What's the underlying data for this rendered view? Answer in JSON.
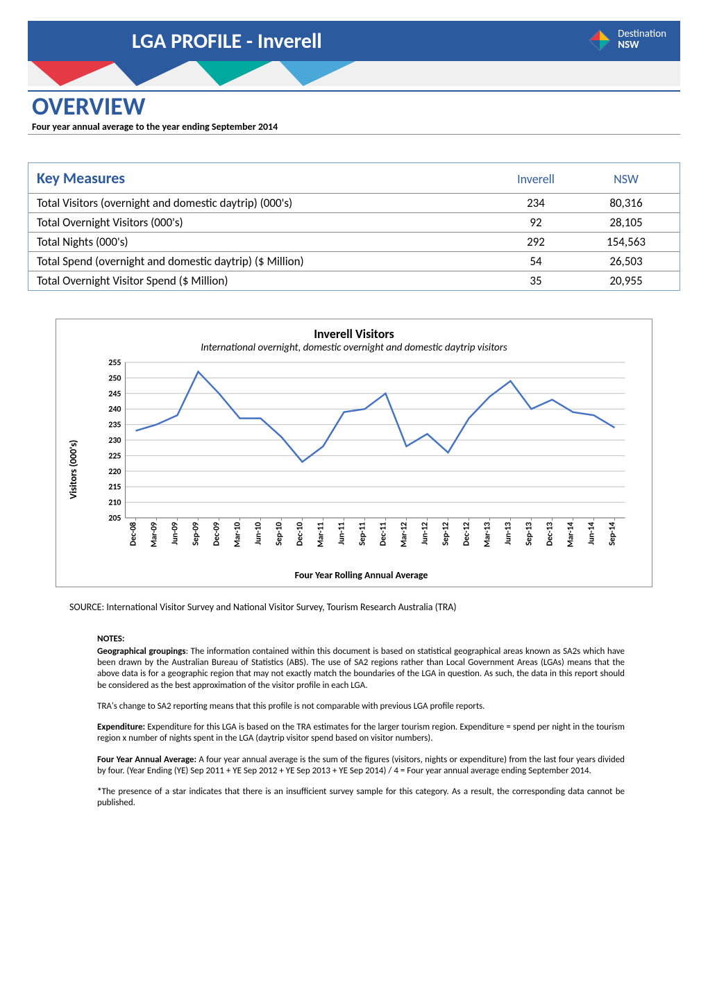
{
  "header": {
    "title": "LGA PROFILE - Inverell",
    "logo_text_line1": "Destination",
    "logo_text_line2": "NSW",
    "logo_colors": [
      "#e63946",
      "#00a99d",
      "#2c5a9e",
      "#fdb813"
    ]
  },
  "overview": {
    "title": "OVERVIEW",
    "subtitle": "Four year annual average to the year ending September 2014"
  },
  "key_measures": {
    "heading": "Key Measures",
    "col1": "Inverell",
    "col2": "NSW",
    "rows": [
      {
        "metric": "Total Visitors (overnight and domestic daytrip) (000's)",
        "v1": "234",
        "v2": "80,316"
      },
      {
        "metric": "Total Overnight Visitors (000's)",
        "v1": "92",
        "v2": "28,105"
      },
      {
        "metric": "Total Nights (000's)",
        "v1": "292",
        "v2": "154,563"
      },
      {
        "metric": "Total Spend (overnight and domestic daytrip) ($ Million)",
        "v1": "54",
        "v2": "26,503"
      },
      {
        "metric": "Total Overnight Visitor Spend ($ Million)",
        "v1": "35",
        "v2": "20,955"
      }
    ]
  },
  "chart": {
    "type": "line",
    "title": "Inverell Visitors",
    "subtitle": "International overnight, domestic overnight and domestic daytrip visitors",
    "ylabel": "Visitors (000's)",
    "xlabel": "Four Year Rolling Annual Average",
    "ylim": [
      205,
      255
    ],
    "ytick_step": 5,
    "yticks": [
      205,
      210,
      215,
      220,
      225,
      230,
      235,
      240,
      245,
      250,
      255
    ],
    "categories": [
      "Dec-08",
      "Mar-09",
      "Jun-09",
      "Sep-09",
      "Dec-09",
      "Mar-10",
      "Jun-10",
      "Sep-10",
      "Dec-10",
      "Mar-11",
      "Jun-11",
      "Sep-11",
      "Dec-11",
      "Mar-12",
      "Jun-12",
      "Sep-12",
      "Dec-12",
      "Mar-13",
      "Jun-13",
      "Sep-13",
      "Dec-13",
      "Mar-14",
      "Jun-14",
      "Sep-14"
    ],
    "values": [
      233,
      235,
      238,
      252,
      245,
      237,
      237,
      231,
      223,
      228,
      239,
      240,
      245,
      228,
      232,
      226,
      237,
      244,
      249,
      240,
      243,
      239,
      238,
      234
    ],
    "line_color": "#4472c4",
    "line_width": 2.5,
    "grid_color": "#bfbfbf",
    "axis_color": "#808080",
    "background_color": "#ffffff",
    "tick_fontsize": 12,
    "tick_fontweight": "bold",
    "label_fontsize": 14
  },
  "source": "SOURCE: International Visitor Survey and National Visitor Survey, Tourism Research Australia (TRA)",
  "notes": {
    "heading": "NOTES:",
    "p1_bold": "Geographical groupings",
    "p1_rest": ": The information contained within this document is based on statistical geographical areas known as SA2s which have been drawn by the Australian Bureau of Statistics (ABS). The use of SA2 regions rather than Local Government Areas (LGAs) means that the above data is for a geographic region that may not exactly match the boundaries of the LGA in question. As such, the data in this report should be considered as the best approximation of the visitor profile in each LGA.",
    "p2": "TRA's change to SA2 reporting means that this profile is not comparable with previous LGA profile reports.",
    "p3_bold": "Expenditure:",
    "p3_rest": " Expenditure for this LGA is based on the TRA estimates for the larger tourism region. Expenditure = spend per night in the tourism region x number of nights spent in the LGA (daytrip visitor spend based on visitor numbers).",
    "p4_bold": "Four Year Annual Average:",
    "p4_rest": " A four year annual average is the sum of the figures (visitors, nights or expenditure) from the last four years divided by four. (Year Ending (YE) Sep 2011 + YE Sep 2012 + YE Sep 2013 + YE Sep 2014) / 4 = Four year annual average ending September 2014.",
    "p5_bold": "*",
    "p5_rest": "The presence of a star indicates that there is an insufficient survey sample for this category. As a result, the corresponding data cannot be published."
  }
}
